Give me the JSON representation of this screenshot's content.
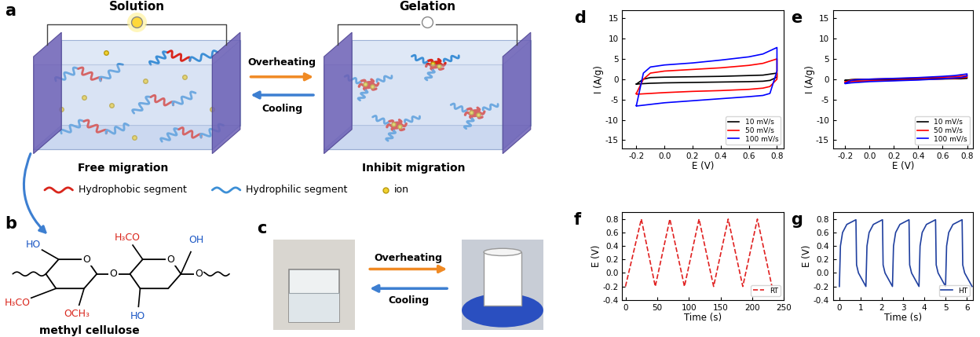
{
  "panels": {
    "a": {
      "label": "a",
      "states": [
        "Solution",
        "Gelation"
      ],
      "forward": "Overheating",
      "backward": "Cooling",
      "captions": [
        "Free migration",
        "Inhibit migration"
      ],
      "legend": [
        {
          "name": "Hydrophobic segment",
          "color": "#d9261c"
        },
        {
          "name": "Hydrophilic segment",
          "color": "#3d8fd6"
        },
        {
          "name": "ion",
          "color": "#f2d230"
        }
      ]
    },
    "b": {
      "label": "b",
      "name": "methyl cellulose",
      "substituents": [
        {
          "text": "HO",
          "color": "#1a56c4"
        },
        {
          "text": "H₃CO",
          "color": "#d9261c"
        },
        {
          "text": "OCH₃",
          "color": "#d9261c"
        },
        {
          "text": "H₃CO",
          "color": "#d9261c"
        },
        {
          "text": "OH",
          "color": "#1a56c4"
        },
        {
          "text": "HO",
          "color": "#1a56c4"
        }
      ],
      "oxygens": [
        "O",
        "O",
        "O",
        "O"
      ]
    },
    "c": {
      "label": "c",
      "forward": "Overheating",
      "backward": "Cooling"
    }
  },
  "chart_data": [
    {
      "type": "line",
      "title": "d",
      "x_label": "E (V)",
      "y_label": "I (A/g)",
      "legend": "lower right",
      "xlim": [
        -0.3,
        0.85
      ],
      "ylim": [
        -17,
        17
      ],
      "xticks": [
        -0.2,
        {
          "value": 0,
          "label": "0.0"
        },
        0.2,
        0.4,
        0.6,
        0.8
      ],
      "yticks": [
        -15,
        -10,
        -5,
        0,
        5,
        10,
        15
      ],
      "x": [
        -0.2,
        -0.15,
        -0.1,
        0,
        0.2,
        0.4,
        0.6,
        0.7,
        0.8,
        0.8,
        0.75,
        0.7,
        0.6,
        0.4,
        0.2,
        0,
        -0.1,
        -0.15,
        -0.2,
        -0.2
      ],
      "series": [
        {
          "name": "10 mV/s",
          "color": "#000000",
          "line_style": "solid",
          "values": [
            -1.2,
            0,
            0.4,
            0.5,
            0.6,
            0.7,
            0.9,
            1.0,
            1.5,
            0.5,
            -0.3,
            -0.5,
            -0.6,
            -0.7,
            -0.8,
            -0.9,
            -1.0,
            -1.1,
            -1.2,
            -1.2
          ]
        },
        {
          "name": "50 mV/s",
          "color": "#ff0000",
          "line_style": "solid",
          "values": [
            -3.5,
            0,
            1.5,
            2.0,
            2.4,
            2.8,
            3.4,
            3.9,
            5.0,
            0,
            -1.8,
            -2.2,
            -2.5,
            -2.8,
            -3.0,
            -3.3,
            -3.5,
            -3.6,
            -3.7,
            -3.5
          ]
        },
        {
          "name": "100 mV/s",
          "color": "#0000ff",
          "line_style": "solid",
          "values": [
            -6.5,
            1.5,
            3.0,
            3.5,
            4.0,
            4.7,
            5.5,
            6.2,
            7.8,
            2.0,
            -3.5,
            -4.0,
            -4.3,
            -4.8,
            -5.3,
            -5.8,
            -6.2,
            -6.4,
            -6.6,
            -6.5
          ]
        }
      ]
    },
    {
      "type": "line",
      "title": "e",
      "x_label": "E (V)",
      "y_label": "I (A/g)",
      "legend": "lower right",
      "xlim": [
        -0.3,
        0.85
      ],
      "ylim": [
        -17,
        17
      ],
      "xticks": [
        -0.2,
        {
          "value": 0,
          "label": "0.0"
        },
        0.2,
        0.4,
        0.6,
        0.8
      ],
      "yticks": [
        -15,
        -10,
        -5,
        0,
        5,
        10,
        15
      ],
      "x": [
        -0.2,
        -0.15,
        -0.1,
        0,
        0.2,
        0.4,
        0.6,
        0.7,
        0.8,
        0.8,
        0.75,
        0.7,
        0.6,
        0.4,
        0.2,
        0,
        -0.1,
        -0.15,
        -0.2,
        -0.2
      ],
      "series": [
        {
          "name": "10 mV/s",
          "color": "#000000",
          "line_style": "solid",
          "values": [
            -0.3,
            -0.1,
            0,
            0,
            0.05,
            0.1,
            0.2,
            0.25,
            0.4,
            0.2,
            0.1,
            0.1,
            0.05,
            0,
            -0.05,
            -0.1,
            -0.2,
            -0.25,
            -0.3,
            -0.3
          ]
        },
        {
          "name": "50 mV/s",
          "color": "#ff0000",
          "line_style": "solid",
          "values": [
            -0.7,
            -0.2,
            -0.1,
            0,
            0.15,
            0.3,
            0.5,
            0.6,
            0.9,
            0.5,
            0.3,
            0.2,
            0.1,
            -0.1,
            -0.3,
            -0.4,
            -0.5,
            -0.6,
            -0.7,
            -0.7
          ]
        },
        {
          "name": "100 mV/s",
          "color": "#0000ff",
          "line_style": "solid",
          "values": [
            -1.0,
            -0.3,
            -0.1,
            0,
            0.2,
            0.4,
            0.7,
            0.9,
            1.3,
            0.8,
            0.4,
            0.3,
            0.1,
            -0.2,
            -0.4,
            -0.6,
            -0.8,
            -0.9,
            -1.1,
            -1.0
          ]
        }
      ]
    },
    {
      "type": "line",
      "title": "f",
      "x_label": "Time (s)",
      "y_label": "E (V)",
      "legend": "lower right",
      "xlim": [
        -5,
        250
      ],
      "ylim": [
        -0.4,
        0.9
      ],
      "xticks": [
        0,
        50,
        100,
        150,
        200,
        250
      ],
      "yticks": [
        -0.4,
        -0.2,
        {
          "value": 0,
          "label": "0.0"
        },
        0.2,
        0.4,
        0.6,
        0.8
      ],
      "x": [
        0,
        25,
        47,
        70,
        93,
        116,
        139,
        162,
        185,
        208,
        231
      ],
      "series": [
        {
          "name": "RT",
          "color": "#e02020",
          "line_style": "dashed",
          "values": [
            -0.2,
            0.8,
            -0.2,
            0.8,
            -0.2,
            0.8,
            -0.2,
            0.8,
            -0.2,
            0.8,
            -0.2
          ]
        }
      ]
    },
    {
      "type": "line",
      "title": "g",
      "x_label": "Time (s)",
      "y_label": "E (V)",
      "legend": "lower right",
      "xlim": [
        -0.3,
        6.3
      ],
      "ylim": [
        -0.4,
        0.9
      ],
      "xticks": [
        0,
        1,
        2,
        3,
        4,
        5,
        6
      ],
      "yticks": [
        -0.4,
        -0.2,
        {
          "value": 0,
          "label": "0.0"
        },
        0.2,
        0.4,
        0.6,
        0.8
      ],
      "x": [
        0,
        0.05,
        0.15,
        0.35,
        0.78,
        0.81,
        0.9,
        1.25,
        1.3,
        1.4,
        1.6,
        2.03,
        2.06,
        2.15,
        2.5,
        2.55,
        2.65,
        2.85,
        3.28,
        3.31,
        3.4,
        3.75,
        3.8,
        3.9,
        4.1,
        4.53,
        4.56,
        4.65,
        5.0,
        5.05,
        5.15,
        5.35,
        5.78,
        5.81,
        5.9,
        6.25
      ],
      "series": [
        {
          "name": "HT",
          "color": "#1f3f9f",
          "line_style": "solid",
          "values": [
            -0.2,
            0.4,
            0.6,
            0.72,
            0.79,
            0.12,
            0.0,
            -0.2,
            0.4,
            0.6,
            0.72,
            0.79,
            0.12,
            0.0,
            -0.2,
            0.4,
            0.6,
            0.72,
            0.79,
            0.12,
            0.0,
            -0.2,
            0.4,
            0.6,
            0.72,
            0.79,
            0.12,
            0.0,
            -0.2,
            0.4,
            0.6,
            0.72,
            0.79,
            0.12,
            0.0,
            -0.2
          ]
        }
      ]
    }
  ]
}
